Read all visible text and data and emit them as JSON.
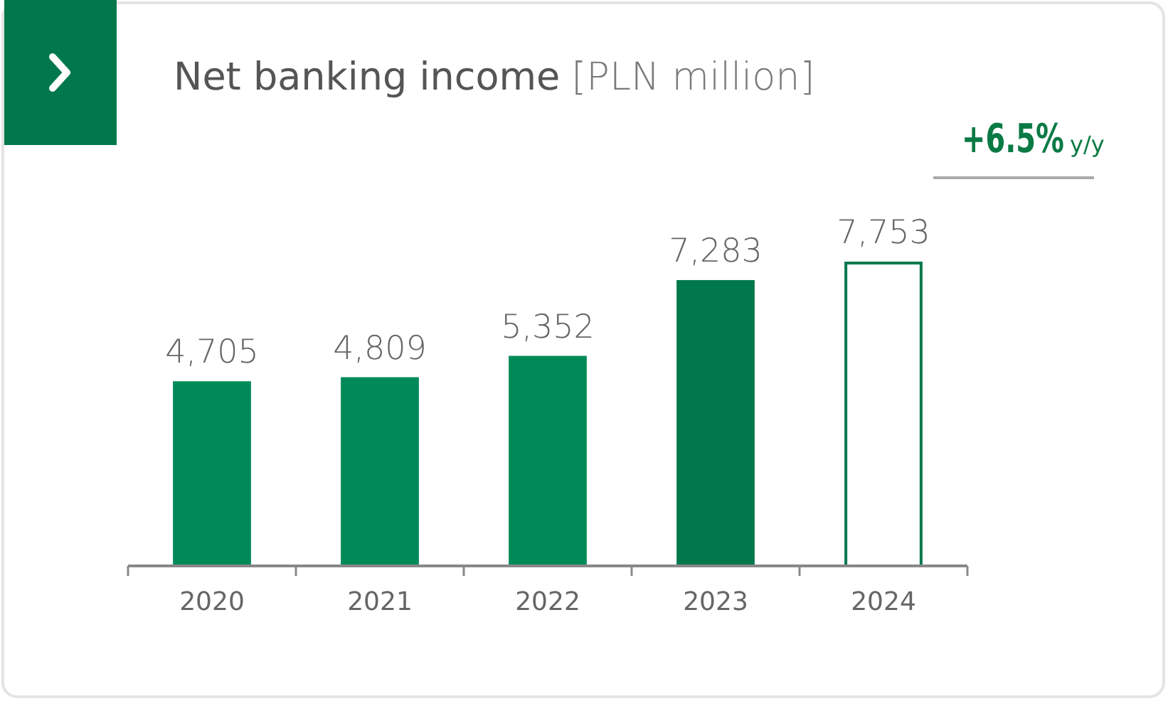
{
  "chart_data": {
    "type": "bar",
    "title": "Net banking income",
    "subtitle": "[PLN million]",
    "categories": [
      "2020",
      "2021",
      "2022",
      "2023",
      "2024"
    ],
    "series": [
      {
        "colors": [
          "#008a58",
          "#008a58",
          "#008a58",
          "#00784c",
          null
        ],
        "values": [
          4705,
          4809,
          5352,
          7283,
          null
        ],
        "value_labels": [
          "4,705",
          "4,809",
          "5,352",
          "7,283",
          null
        ]
      },
      {
        "color": "#00784c",
        "line_style": "solid",
        "values": [
          null,
          null,
          null,
          null,
          7753
        ],
        "value_labels": [
          null,
          null,
          null,
          null,
          "7,753"
        ]
      }
    ],
    "annotations": [
      "+6.5%",
      "y/y"
    ]
  }
}
